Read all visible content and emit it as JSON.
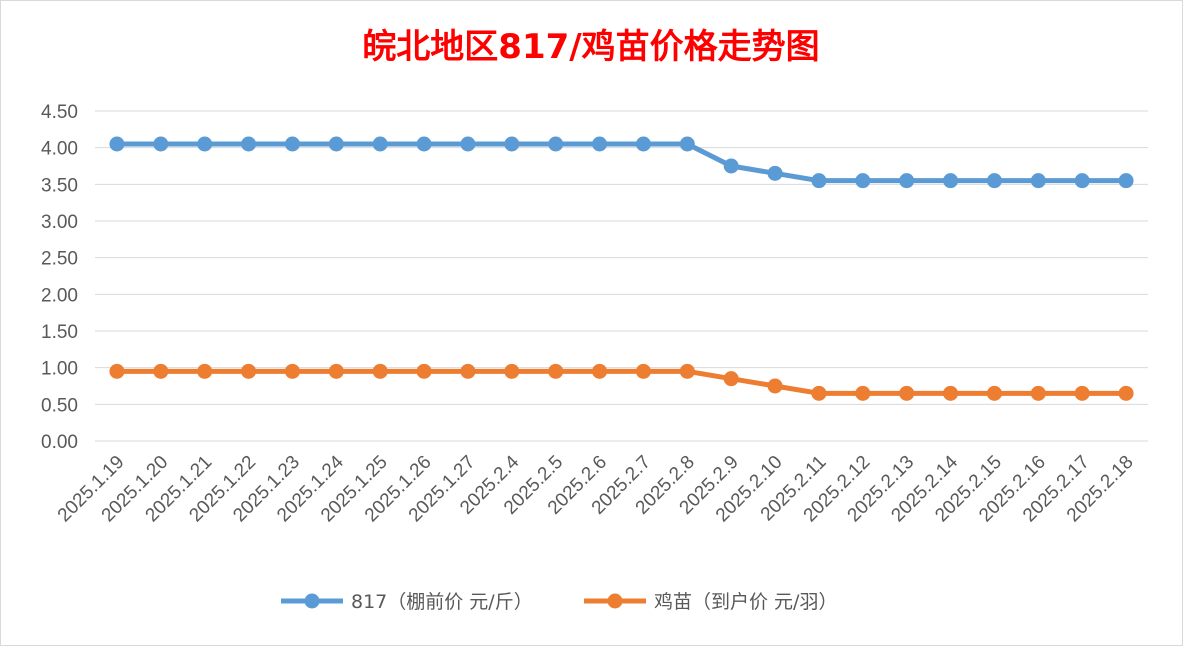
{
  "chart_data": {
    "type": "line",
    "title": "皖北地区817/鸡苗价格走势图",
    "xlabel": "",
    "ylabel": "",
    "ylim": [
      0,
      4.5
    ],
    "yticks": [
      "0.00",
      "0.50",
      "1.00",
      "1.50",
      "2.00",
      "2.50",
      "3.00",
      "3.50",
      "4.00",
      "4.50"
    ],
    "grid": true,
    "legend_position": "bottom",
    "categories": [
      "2025.1.19",
      "2025.1.20",
      "2025.1.21",
      "2025.1.22",
      "2025.1.23",
      "2025.1.24",
      "2025.1.25",
      "2025.1.26",
      "2025.1.27",
      "2025.2.4",
      "2025.2.5",
      "2025.2.6",
      "2025.2.7",
      "2025.2.8",
      "2025.2.9",
      "2025.2.10",
      "2025.2.11",
      "2025.2.12",
      "2025.2.13",
      "2025.2.14",
      "2025.2.15",
      "2025.2.16",
      "2025.2.17",
      "2025.2.18"
    ],
    "series": [
      {
        "name": "817（棚前价 元/斤）",
        "color": "#5b9bd5",
        "values": [
          4.05,
          4.05,
          4.05,
          4.05,
          4.05,
          4.05,
          4.05,
          4.05,
          4.05,
          4.05,
          4.05,
          4.05,
          4.05,
          4.05,
          3.75,
          3.65,
          3.55,
          3.55,
          3.55,
          3.55,
          3.55,
          3.55,
          3.55,
          3.55
        ]
      },
      {
        "name": "鸡苗（到户价 元/羽）",
        "color": "#ed7d31",
        "values": [
          0.95,
          0.95,
          0.95,
          0.95,
          0.95,
          0.95,
          0.95,
          0.95,
          0.95,
          0.95,
          0.95,
          0.95,
          0.95,
          0.95,
          0.85,
          0.75,
          0.65,
          0.65,
          0.65,
          0.65,
          0.65,
          0.65,
          0.65,
          0.65
        ]
      }
    ]
  },
  "colors": {
    "title": "#ff0000",
    "grid": "#d9d9d9",
    "tick_text": "#595959"
  }
}
